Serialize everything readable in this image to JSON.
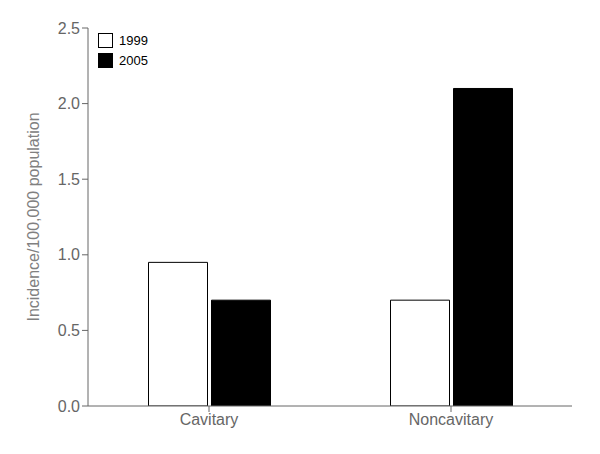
{
  "chart_data": {
    "type": "bar",
    "categories": [
      "Cavitary",
      "Noncavitary"
    ],
    "series": [
      {
        "name": "1999",
        "color": "#ffffff",
        "values": [
          0.95,
          0.7
        ]
      },
      {
        "name": "2005",
        "color": "#000000",
        "values": [
          0.7,
          2.1
        ]
      }
    ],
    "ylabel": "Incidence/100,000 population",
    "ylim": [
      0.0,
      2.5
    ],
    "yticks": [
      {
        "value": 0,
        "label": "0.0"
      },
      0.5,
      {
        "value": 1,
        "label": "1.0"
      },
      1.5,
      {
        "value": 2,
        "label": "2.0"
      },
      2.5
    ],
    "legend": "upper left",
    "grid": false
  }
}
